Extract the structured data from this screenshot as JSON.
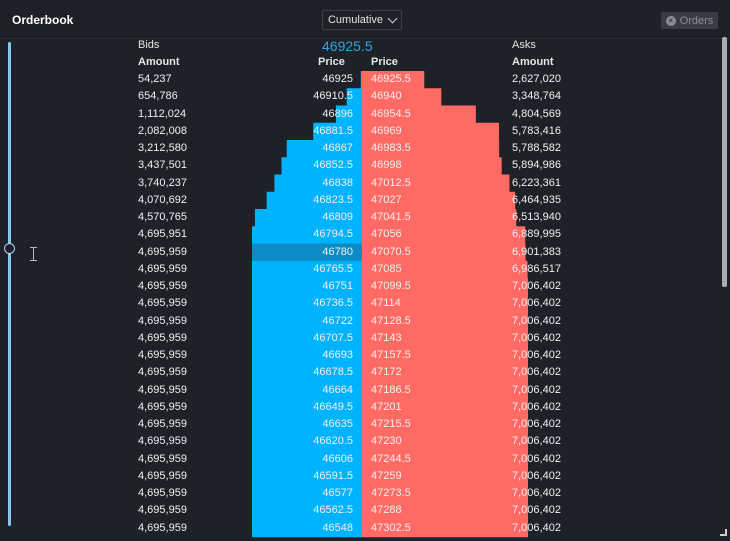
{
  "header": {
    "title": "Orderbook",
    "mode": "Cumulative",
    "orders_button": "Orders"
  },
  "columns": {
    "bids_label": "Bids",
    "asks_label": "Asks",
    "amount": "Amount",
    "price": "Price",
    "mid_price": "46925.5"
  },
  "colors": {
    "bid": "#00b3ff",
    "ask": "#ff6a64",
    "highlight": "#0d8bc4"
  },
  "highlighted_bid_row": 10,
  "bids": [
    {
      "amount": "54,237",
      "price": "46925"
    },
    {
      "amount": "654,786",
      "price": "46910.5"
    },
    {
      "amount": "1,112,024",
      "price": "46896"
    },
    {
      "amount": "2,082,008",
      "price": "46881.5"
    },
    {
      "amount": "3,212,580",
      "price": "46867"
    },
    {
      "amount": "3,437,501",
      "price": "46852.5"
    },
    {
      "amount": "3,740,237",
      "price": "46838"
    },
    {
      "amount": "4,070,692",
      "price": "46823.5"
    },
    {
      "amount": "4,570,765",
      "price": "46809"
    },
    {
      "amount": "4,695,951",
      "price": "46794.5"
    },
    {
      "amount": "4,695,959",
      "price": "46780"
    },
    {
      "amount": "4,695,959",
      "price": "46765.5"
    },
    {
      "amount": "4,695,959",
      "price": "46751"
    },
    {
      "amount": "4,695,959",
      "price": "46736.5"
    },
    {
      "amount": "4,695,959",
      "price": "46722"
    },
    {
      "amount": "4,695,959",
      "price": "46707.5"
    },
    {
      "amount": "4,695,959",
      "price": "46693"
    },
    {
      "amount": "4,695,959",
      "price": "46678.5"
    },
    {
      "amount": "4,695,959",
      "price": "46664"
    },
    {
      "amount": "4,695,959",
      "price": "46649.5"
    },
    {
      "amount": "4,695,959",
      "price": "46635"
    },
    {
      "amount": "4,695,959",
      "price": "46620.5"
    },
    {
      "amount": "4,695,959",
      "price": "46606"
    },
    {
      "amount": "4,695,959",
      "price": "46591.5"
    },
    {
      "amount": "4,695,959",
      "price": "46577"
    },
    {
      "amount": "4,695,959",
      "price": "46562.5"
    },
    {
      "amount": "4,695,959",
      "price": "46548"
    }
  ],
  "asks": [
    {
      "amount": "2,627,020",
      "price": "46925.5"
    },
    {
      "amount": "3,348,764",
      "price": "46940"
    },
    {
      "amount": "4,804,569",
      "price": "46954.5"
    },
    {
      "amount": "5,783,416",
      "price": "46969"
    },
    {
      "amount": "5,788,582",
      "price": "46983.5"
    },
    {
      "amount": "5,894,986",
      "price": "46998"
    },
    {
      "amount": "6,223,361",
      "price": "47012.5"
    },
    {
      "amount": "6,464,935",
      "price": "47027"
    },
    {
      "amount": "6,513,940",
      "price": "47041.5"
    },
    {
      "amount": "6,889,995",
      "price": "47056"
    },
    {
      "amount": "6,901,383",
      "price": "47070.5"
    },
    {
      "amount": "6,986,517",
      "price": "47085"
    },
    {
      "amount": "7,006,402",
      "price": "47099.5"
    },
    {
      "amount": "7,006,402",
      "price": "47114"
    },
    {
      "amount": "7,006,402",
      "price": "47128.5"
    },
    {
      "amount": "7,006,402",
      "price": "47143"
    },
    {
      "amount": "7,006,402",
      "price": "47157.5"
    },
    {
      "amount": "7,006,402",
      "price": "47172"
    },
    {
      "amount": "7,006,402",
      "price": "47186.5"
    },
    {
      "amount": "7,006,402",
      "price": "47201"
    },
    {
      "amount": "7,006,402",
      "price": "47215.5"
    },
    {
      "amount": "7,006,402",
      "price": "47230"
    },
    {
      "amount": "7,006,402",
      "price": "47244.5"
    },
    {
      "amount": "7,006,402",
      "price": "47259"
    },
    {
      "amount": "7,006,402",
      "price": "47273.5"
    },
    {
      "amount": "7,006,402",
      "price": "47288"
    },
    {
      "amount": "7,006,402",
      "price": "47302.5"
    }
  ]
}
